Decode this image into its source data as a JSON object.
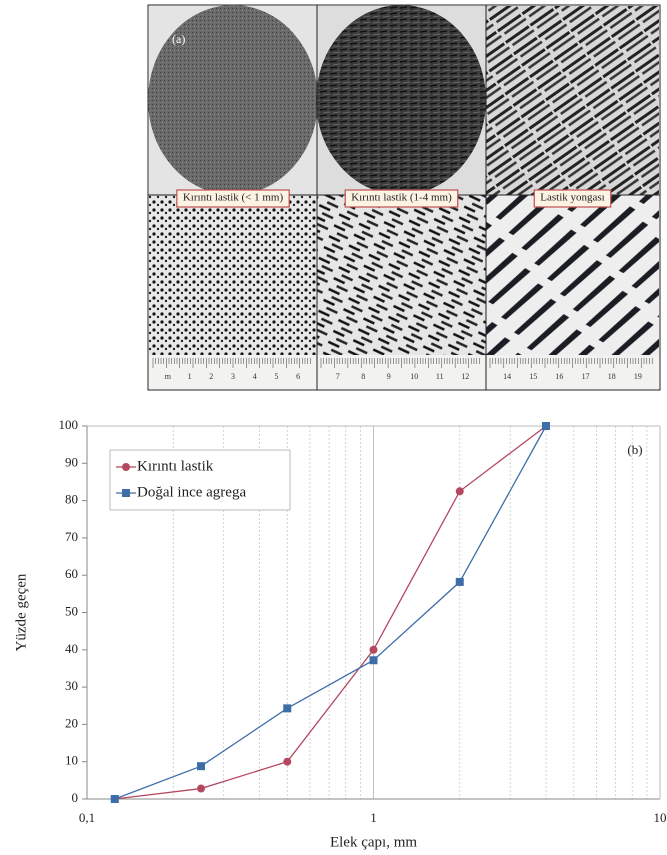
{
  "panel_a": {
    "label": "(a)",
    "photos": [
      {
        "caption": "Kırıntı lastik (< 1 mm)",
        "ruler": [
          "m",
          "1",
          "2",
          "3",
          "4",
          "5",
          "6"
        ]
      },
      {
        "caption": "Kırıntı lastik (1-4 mm)",
        "ruler": [
          "7",
          "8",
          "9",
          "10",
          "11",
          "12"
        ]
      },
      {
        "caption": "Lastik yongası",
        "ruler": [
          "14",
          "15",
          "16",
          "17",
          "18",
          "19"
        ]
      }
    ]
  },
  "chart_data": {
    "type": "line",
    "annotation": "(b)",
    "x_label": "Elek çapı, mm",
    "y_label": "Yüzde geçen",
    "x_log": true,
    "x_minor_grid": true,
    "legend": "top-left",
    "xlim": [
      0.1,
      10
    ],
    "xticks": [
      {
        "value": 0.1,
        "label": "0,1"
      },
      1,
      10
    ],
    "ylim": [
      0,
      100
    ],
    "yticks": [
      0,
      10,
      20,
      30,
      40,
      50,
      60,
      70,
      80,
      90,
      100
    ],
    "x": [
      0.125,
      0.25,
      0.5,
      1,
      2,
      4
    ],
    "series": [
      {
        "name": "Kırıntı lastik",
        "color": "#b5485f",
        "marker": "circle",
        "values": [
          0,
          2.8,
          10,
          40,
          82.5,
          100
        ]
      },
      {
        "name": "Doğal ince agrega",
        "color": "#3d6ea8",
        "marker": "square",
        "values": [
          0,
          8.8,
          24.3,
          37.2,
          58.2,
          100
        ]
      }
    ]
  }
}
